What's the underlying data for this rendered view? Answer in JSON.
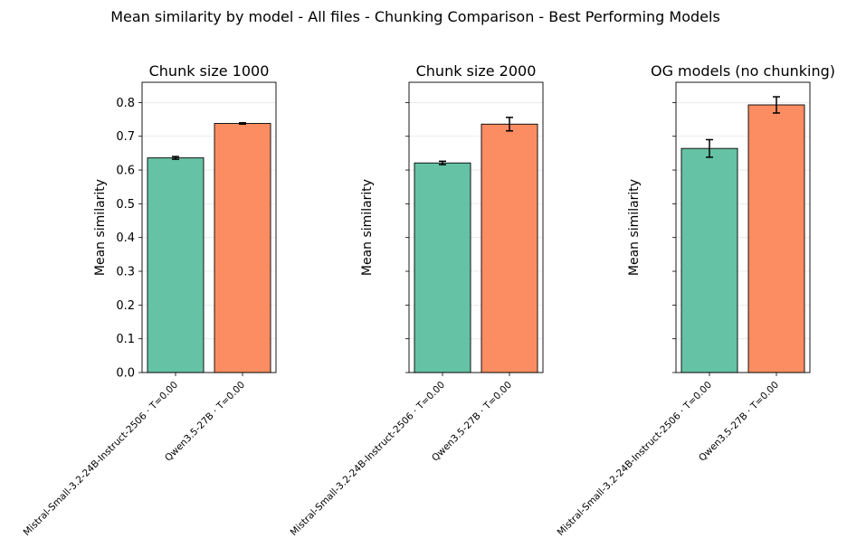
{
  "suptitle": "Mean similarity by model - All files - Chunking Comparison - Best Performing Models",
  "colors": {
    "model_a": "#66c2a5",
    "model_b": "#fc8d62",
    "grid": "#e6e6e6",
    "edge": "#000000"
  },
  "chart_data": [
    {
      "type": "bar",
      "title": "Chunk size 1000",
      "xlabel": "",
      "ylabel": "Mean similarity",
      "categories": [
        "Mistral-Small-3.2-24B-Instruct-2506 · T=0.00",
        "Qwen3.5-27B · T=0.00"
      ],
      "values": [
        0.636,
        0.738
      ],
      "errors": [
        0.004,
        0.002
      ],
      "ylim": [
        0,
        0.86
      ],
      "yticks": [
        "0.0",
        "0.1",
        "0.2",
        "0.3",
        "0.4",
        "0.5",
        "0.6",
        "0.7",
        "0.8"
      ],
      "grid": "y"
    },
    {
      "type": "bar",
      "title": "Chunk size 2000",
      "xlabel": "",
      "ylabel": "Mean similarity",
      "categories": [
        "Mistral-Small-3.2-24B-Instruct-2506 · T=0.00",
        "Qwen3.5-27B · T=0.00"
      ],
      "values": [
        0.621,
        0.736
      ],
      "errors": [
        0.005,
        0.02
      ],
      "ylim": [
        0,
        0.86
      ],
      "yticks": [],
      "grid": "y"
    },
    {
      "type": "bar",
      "title": "OG models (no chunking)",
      "xlabel": "",
      "ylabel": "Mean similarity",
      "categories": [
        "Mistral-Small-3.2-24B-Instruct-2506 · T=0.00",
        "Qwen3.5-27B · T=0.00"
      ],
      "values": [
        0.664,
        0.793
      ],
      "errors": [
        0.026,
        0.024
      ],
      "ylim": [
        0,
        0.86
      ],
      "yticks": [],
      "grid": "y"
    }
  ]
}
